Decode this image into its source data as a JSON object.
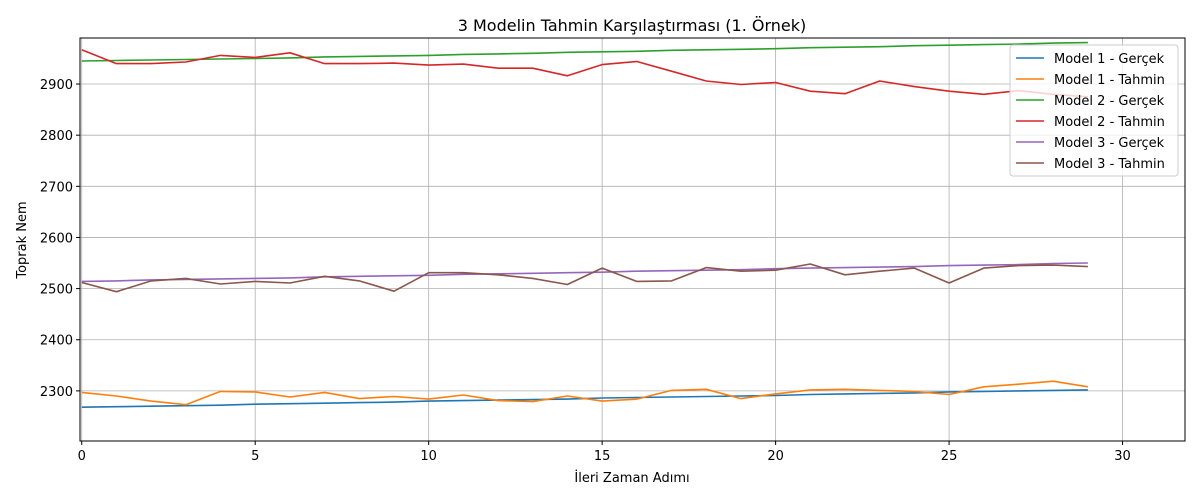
{
  "chart_data": {
    "type": "line",
    "title": "3 Modelin Tahmin Karşılaştırması (1. Örnek)",
    "xlabel": "İleri Zaman Adımı",
    "ylabel": "Toprak Nem",
    "xlim": [
      -0.05,
      31.8
    ],
    "ylim": [
      2202,
      2990
    ],
    "xticks": [
      0,
      5,
      10,
      15,
      20,
      25,
      30
    ],
    "yticks": [
      2300,
      2400,
      2500,
      2600,
      2700,
      2800,
      2900
    ],
    "grid": true,
    "legend_position": "top-right",
    "x": [
      0,
      1,
      2,
      3,
      4,
      5,
      6,
      7,
      8,
      9,
      10,
      11,
      12,
      13,
      14,
      15,
      16,
      17,
      18,
      19,
      20,
      21,
      22,
      23,
      24,
      25,
      26,
      27,
      28,
      29
    ],
    "series": [
      {
        "name": "Model 1 - Gerçek",
        "color": "#1f77b4",
        "values": [
          2268,
          2269,
          2270,
          2271,
          2272,
          2274,
          2275,
          2276,
          2277,
          2278,
          2280,
          2281,
          2282,
          2283,
          2284,
          2286,
          2287,
          2288,
          2289,
          2290,
          2291,
          2293,
          2294,
          2295,
          2296,
          2298,
          2299,
          2300,
          2301,
          2302
        ]
      },
      {
        "name": "Model 1 - Tahmin",
        "color": "#ff7f0e",
        "values": [
          2297,
          2290,
          2280,
          2273,
          2299,
          2298,
          2288,
          2297,
          2285,
          2289,
          2284,
          2292,
          2281,
          2279,
          2290,
          2280,
          2284,
          2301,
          2303,
          2285,
          2294,
          2302,
          2303,
          2301,
          2299,
          2293,
          2308,
          2313,
          2319,
          2308
        ]
      },
      {
        "name": "Model 2 - Gerçek",
        "color": "#2ca02c",
        "values": [
          2945,
          2946,
          2947,
          2948,
          2949,
          2950,
          2951,
          2953,
          2954,
          2955,
          2956,
          2958,
          2959,
          2960,
          2962,
          2963,
          2964,
          2966,
          2967,
          2968,
          2969,
          2971,
          2972,
          2973,
          2975,
          2976,
          2977,
          2978,
          2980,
          2981
        ]
      },
      {
        "name": "Model 2 - Tahmin",
        "color": "#d62728",
        "values": [
          2967,
          2940,
          2940,
          2943,
          2956,
          2952,
          2961,
          2940,
          2940,
          2941,
          2937,
          2939,
          2931,
          2931,
          2916,
          2938,
          2944,
          2925,
          2906,
          2899,
          2903,
          2886,
          2881,
          2906,
          2895,
          2886,
          2880,
          2887,
          2880,
          2875
        ]
      },
      {
        "name": "Model 3 - Gerçek",
        "color": "#9467bd",
        "values": [
          2514,
          2515,
          2517,
          2518,
          2519,
          2520,
          2521,
          2523,
          2524,
          2525,
          2526,
          2528,
          2529,
          2530,
          2531,
          2532,
          2534,
          2535,
          2536,
          2537,
          2539,
          2540,
          2541,
          2542,
          2543,
          2545,
          2546,
          2547,
          2549,
          2550
        ]
      },
      {
        "name": "Model 3 - Tahmin",
        "color": "#8c564b",
        "values": [
          2512,
          2494,
          2515,
          2520,
          2509,
          2514,
          2511,
          2524,
          2515,
          2495,
          2531,
          2531,
          2527,
          2520,
          2508,
          2540,
          2514,
          2515,
          2541,
          2534,
          2536,
          2548,
          2527,
          2534,
          2540,
          2511,
          2540,
          2545,
          2546,
          2543
        ]
      }
    ]
  }
}
